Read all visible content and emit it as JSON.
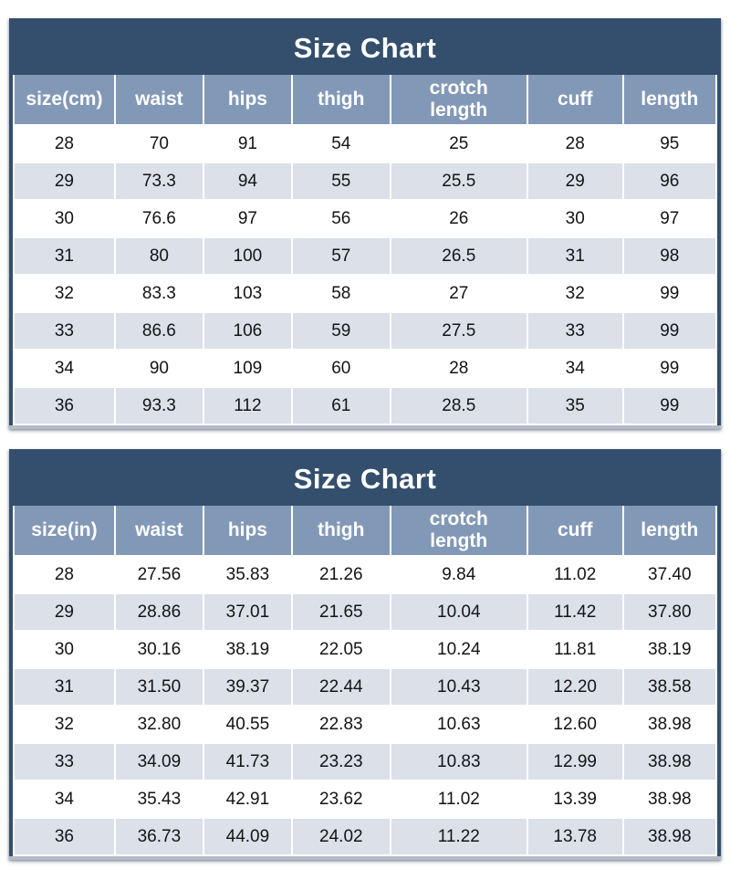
{
  "colors": {
    "title_bar_navy": "#334f6d",
    "header_blue": "#8298b7",
    "row_alt_grey": "#dbe0e9",
    "row_white": "#ffffff",
    "header_text": "#ffffff",
    "cell_text": "#141414",
    "bottom_edge_grey": "#b4bbc7"
  },
  "chart_data": [
    {
      "type": "table",
      "title": "Size Chart",
      "columns": [
        "size(cm)",
        "waist",
        "hips",
        "thigh",
        "crotch length",
        "cuff",
        "length"
      ],
      "rows": [
        [
          "28",
          "70",
          "91",
          "54",
          "25",
          "28",
          "95"
        ],
        [
          "29",
          "73.3",
          "94",
          "55",
          "25.5",
          "29",
          "96"
        ],
        [
          "30",
          "76.6",
          "97",
          "56",
          "26",
          "30",
          "97"
        ],
        [
          "31",
          "80",
          "100",
          "57",
          "26.5",
          "31",
          "98"
        ],
        [
          "32",
          "83.3",
          "103",
          "58",
          "27",
          "32",
          "99"
        ],
        [
          "33",
          "86.6",
          "106",
          "59",
          "27.5",
          "33",
          "99"
        ],
        [
          "34",
          "90",
          "109",
          "60",
          "28",
          "34",
          "99"
        ],
        [
          "36",
          "93.3",
          "112",
          "61",
          "28.5",
          "35",
          "99"
        ]
      ]
    },
    {
      "type": "table",
      "title": "Size Chart",
      "columns": [
        "size(in)",
        "waist",
        "hips",
        "thigh",
        "crotch length",
        "cuff",
        "length"
      ],
      "rows": [
        [
          "28",
          "27.56",
          "35.83",
          "21.26",
          "9.84",
          "11.02",
          "37.40"
        ],
        [
          "29",
          "28.86",
          "37.01",
          "21.65",
          "10.04",
          "11.42",
          "37.80"
        ],
        [
          "30",
          "30.16",
          "38.19",
          "22.05",
          "10.24",
          "11.81",
          "38.19"
        ],
        [
          "31",
          "31.50",
          "39.37",
          "22.44",
          "10.43",
          "12.20",
          "38.58"
        ],
        [
          "32",
          "32.80",
          "40.55",
          "22.83",
          "10.63",
          "12.60",
          "38.98"
        ],
        [
          "33",
          "34.09",
          "41.73",
          "23.23",
          "10.83",
          "12.99",
          "38.98"
        ],
        [
          "34",
          "35.43",
          "42.91",
          "23.62",
          "11.02",
          "13.39",
          "38.98"
        ],
        [
          "36",
          "36.73",
          "44.09",
          "24.02",
          "11.22",
          "13.78",
          "38.98"
        ]
      ]
    }
  ]
}
